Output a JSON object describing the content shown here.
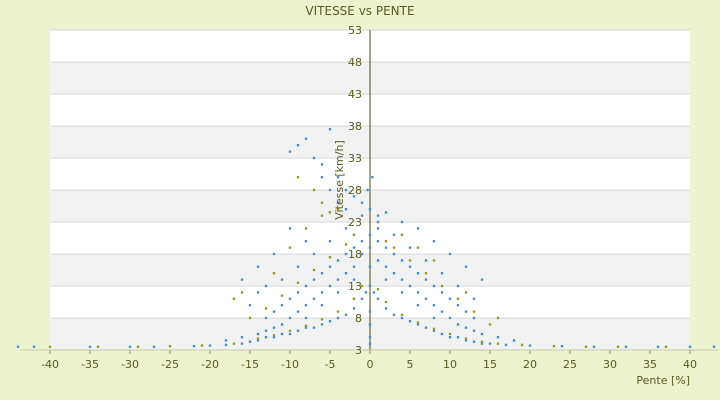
{
  "chart_data": {
    "type": "scatter",
    "title": "VITESSE vs PENTE",
    "xlabel": "Pente [%]",
    "ylabel": "Vitesse [km/h]",
    "xlim": [
      -40,
      40
    ],
    "ylim": [
      3,
      53
    ],
    "x_ticks": [
      "-40",
      "-35",
      "-30",
      "-25",
      "-20",
      "-15",
      "-10",
      "-5",
      "0",
      "5",
      "10",
      "15",
      "20",
      "25",
      "30",
      "35",
      "40"
    ],
    "y_ticks": [
      "3",
      "8",
      "13",
      "18",
      "23",
      "28",
      "33",
      "38",
      "43",
      "48",
      "53"
    ],
    "grid": true,
    "band_colors": [
      "#ffffff",
      "#f2f2f2"
    ],
    "series": [
      {
        "color": "#4a90d0",
        "points": [
          [
            -44,
            3.5
          ],
          [
            -42,
            3.5
          ],
          [
            -35,
            3.5
          ],
          [
            -30,
            3.5
          ],
          [
            -27,
            3.5
          ],
          [
            -22,
            3.6
          ],
          [
            -20,
            3.7
          ],
          [
            -18,
            3.8
          ],
          [
            -16,
            4
          ],
          [
            -15,
            4.3
          ],
          [
            -14,
            4.5
          ],
          [
            -13,
            5
          ],
          [
            -12,
            5
          ],
          [
            -11,
            5.5
          ],
          [
            -10,
            5.5
          ],
          [
            -9,
            6
          ],
          [
            -8,
            6.5
          ],
          [
            -7,
            6.5
          ],
          [
            -6,
            7
          ],
          [
            -5,
            7.5
          ],
          [
            -4,
            8
          ],
          [
            -3,
            8.5
          ],
          [
            -2,
            9.5
          ],
          [
            -1,
            11
          ],
          [
            -0.5,
            12
          ],
          [
            0,
            13
          ],
          [
            0.5,
            12
          ],
          [
            1,
            11
          ],
          [
            2,
            9.5
          ],
          [
            3,
            8.5
          ],
          [
            4,
            8
          ],
          [
            5,
            7.5
          ],
          [
            6,
            7
          ],
          [
            7,
            6.5
          ],
          [
            8,
            6
          ],
          [
            9,
            5.5
          ],
          [
            10,
            5
          ],
          [
            11,
            5
          ],
          [
            12,
            4.5
          ],
          [
            13,
            4.3
          ],
          [
            14,
            4
          ],
          [
            15,
            4
          ],
          [
            17,
            3.8
          ],
          [
            20,
            3.7
          ],
          [
            24,
            3.6
          ],
          [
            28,
            3.5
          ],
          [
            32,
            3.5
          ],
          [
            36,
            3.5
          ],
          [
            40,
            3.5
          ],
          [
            43,
            3.5
          ],
          [
            -12,
            9
          ],
          [
            -11,
            10
          ],
          [
            -10,
            11
          ],
          [
            -9,
            12
          ],
          [
            -8,
            13
          ],
          [
            -7,
            14
          ],
          [
            -6,
            15
          ],
          [
            -5,
            16
          ],
          [
            -4,
            17
          ],
          [
            -3,
            18
          ],
          [
            -2,
            19
          ],
          [
            -1,
            20
          ],
          [
            0,
            21
          ],
          [
            1,
            20
          ],
          [
            2,
            19
          ],
          [
            3,
            18
          ],
          [
            4,
            17
          ],
          [
            5,
            16
          ],
          [
            6,
            15
          ],
          [
            7,
            14
          ],
          [
            8,
            13
          ],
          [
            9,
            12
          ],
          [
            10,
            11
          ],
          [
            11,
            10
          ],
          [
            12,
            9
          ],
          [
            13,
            8
          ],
          [
            -13,
            8
          ],
          [
            -6,
            10
          ],
          [
            -4,
            12
          ],
          [
            -2,
            14
          ],
          [
            0,
            16
          ],
          [
            2,
            14
          ],
          [
            4,
            12
          ],
          [
            6,
            10
          ],
          [
            8,
            8
          ],
          [
            -8,
            8
          ],
          [
            -5,
            20
          ],
          [
            -3,
            22
          ],
          [
            -1,
            24
          ],
          [
            1,
            23
          ],
          [
            3,
            21
          ],
          [
            5,
            19
          ],
          [
            -7,
            18
          ],
          [
            7,
            17
          ],
          [
            -9,
            16
          ],
          [
            9,
            15
          ],
          [
            -11,
            14
          ],
          [
            11,
            13
          ],
          [
            -14,
            12
          ],
          [
            13,
            11
          ],
          [
            -10,
            34
          ],
          [
            -9,
            35
          ],
          [
            -8,
            36
          ],
          [
            -5,
            37.5
          ],
          [
            -7,
            33
          ],
          [
            -6,
            32
          ],
          [
            -4,
            30
          ],
          [
            -3,
            28
          ],
          [
            -2,
            27
          ],
          [
            -1,
            26
          ],
          [
            0,
            25
          ],
          [
            1,
            24
          ],
          [
            -6,
            30
          ],
          [
            -5,
            28
          ],
          [
            -4,
            26
          ],
          [
            -3,
            25
          ],
          [
            -10,
            22
          ],
          [
            -8,
            20
          ],
          [
            -12,
            18
          ],
          [
            -14,
            16
          ],
          [
            -16,
            14
          ],
          [
            -15,
            10
          ],
          [
            -13,
            13
          ],
          [
            12,
            16
          ],
          [
            14,
            14
          ],
          [
            10,
            18
          ],
          [
            8,
            20
          ],
          [
            6,
            22
          ],
          [
            4,
            23
          ],
          [
            2,
            24.5
          ],
          [
            -1,
            18
          ],
          [
            0,
            19
          ],
          [
            1,
            17
          ],
          [
            -2,
            16
          ],
          [
            2,
            16
          ],
          [
            -3,
            15
          ],
          [
            3,
            15
          ],
          [
            -4,
            14
          ],
          [
            4,
            14
          ],
          [
            -5,
            13
          ],
          [
            5,
            13
          ],
          [
            -6,
            12
          ],
          [
            6,
            12
          ],
          [
            -7,
            11
          ],
          [
            7,
            11
          ],
          [
            -8,
            10
          ],
          [
            8,
            10
          ],
          [
            -9,
            9
          ],
          [
            9,
            9
          ],
          [
            -10,
            8
          ],
          [
            10,
            8
          ],
          [
            -11,
            7
          ],
          [
            11,
            7
          ],
          [
            -12,
            6.5
          ],
          [
            12,
            6.5
          ],
          [
            -13,
            6
          ],
          [
            13,
            6
          ],
          [
            -14,
            5.5
          ],
          [
            14,
            5.5
          ],
          [
            -16,
            5
          ],
          [
            16,
            5
          ],
          [
            -18,
            4.5
          ],
          [
            18,
            4.5
          ],
          [
            0,
            9
          ],
          [
            0,
            7
          ],
          [
            0,
            5
          ],
          [
            0,
            4
          ],
          [
            0.3,
            30
          ],
          [
            -0.3,
            28
          ],
          [
            1,
            22
          ]
        ]
      },
      {
        "color": "#9a9a30",
        "points": [
          [
            -40,
            3.5
          ],
          [
            -34,
            3.5
          ],
          [
            -29,
            3.5
          ],
          [
            -25,
            3.6
          ],
          [
            -21,
            3.7
          ],
          [
            -17,
            4
          ],
          [
            -14,
            4.8
          ],
          [
            -12,
            5.3
          ],
          [
            -10,
            6
          ],
          [
            -8,
            6.8
          ],
          [
            -6,
            7.8
          ],
          [
            -4,
            9
          ],
          [
            -2,
            11
          ],
          [
            -1,
            13
          ],
          [
            1,
            12.5
          ],
          [
            2,
            10.5
          ],
          [
            4,
            8.5
          ],
          [
            6,
            7.3
          ],
          [
            8,
            6.3
          ],
          [
            10,
            5.5
          ],
          [
            12,
            4.8
          ],
          [
            14,
            4.3
          ],
          [
            16,
            4
          ],
          [
            19,
            3.8
          ],
          [
            23,
            3.6
          ],
          [
            27,
            3.5
          ],
          [
            31,
            3.5
          ],
          [
            37,
            3.5
          ],
          [
            -13,
            9.5
          ],
          [
            -11,
            11.5
          ],
          [
            -9,
            13.5
          ],
          [
            -7,
            15.5
          ],
          [
            -5,
            17.5
          ],
          [
            -3,
            19.5
          ],
          [
            3,
            19
          ],
          [
            5,
            17
          ],
          [
            7,
            15
          ],
          [
            9,
            13
          ],
          [
            11,
            11
          ],
          [
            13,
            9
          ],
          [
            -15,
            8
          ],
          [
            15,
            7
          ],
          [
            -8,
            22
          ],
          [
            -6,
            24
          ],
          [
            -4,
            25
          ],
          [
            4,
            21
          ],
          [
            6,
            19
          ],
          [
            8,
            17
          ],
          [
            -10,
            19
          ],
          [
            -12,
            15
          ],
          [
            12,
            12
          ],
          [
            -16,
            12
          ],
          [
            -9,
            30
          ],
          [
            -7,
            28
          ],
          [
            -6,
            26
          ],
          [
            -5,
            24.5
          ],
          [
            -17,
            11
          ],
          [
            16,
            8
          ],
          [
            -2,
            21
          ],
          [
            2,
            20
          ]
        ]
      }
    ]
  }
}
